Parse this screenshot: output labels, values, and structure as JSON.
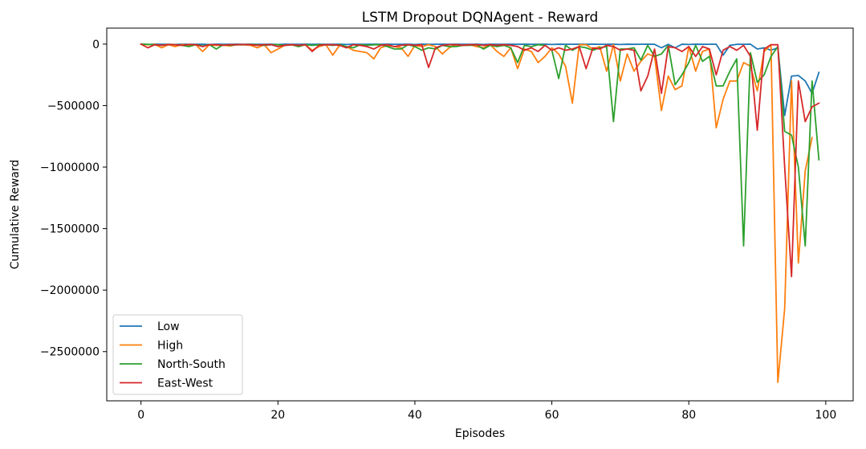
{
  "chart_data": {
    "type": "line",
    "title": "LSTM Dropout DQNAgent - Reward",
    "xlabel": "Episodes",
    "ylabel": "Cumulative Reward",
    "xlim": [
      -5,
      104
    ],
    "ylim": [
      -2900000,
      130000
    ],
    "xticks": [
      0,
      20,
      40,
      60,
      80,
      100
    ],
    "yticks": [
      0,
      -500000,
      -1000000,
      -1500000,
      -2000000,
      -2500000
    ],
    "ytick_labels": [
      "0",
      "−500000",
      "−1000000",
      "−1500000",
      "−2000000",
      "−2500000"
    ],
    "xtick_labels": [
      "0",
      "20",
      "40",
      "60",
      "80",
      "100"
    ],
    "legend_position": "lower-left",
    "grid": false,
    "series": [
      {
        "name": "Low",
        "color": "#1f77b4",
        "values": [
          0,
          -3000,
          -1000,
          -2000,
          -1500,
          -3000,
          -1000,
          -2000,
          -1500,
          -1000,
          -3000,
          -1000,
          -2000,
          -1500,
          -1000,
          -2000,
          -1000,
          -1500,
          -2000,
          -1000,
          -3000,
          -1000,
          -2000,
          -1500,
          -1000,
          -2000,
          -1000,
          -1500,
          -2000,
          -1000,
          -3000,
          -1000,
          -2000,
          -1500,
          -1000,
          -2000,
          -1000,
          -1500,
          -2000,
          -1000,
          -3000,
          -1000,
          -2000,
          -1500,
          -1000,
          -2000,
          -1000,
          -1500,
          -2000,
          -1000,
          -3000,
          -1000,
          -2000,
          -1500,
          -1000,
          -2000,
          -1000,
          -1500,
          -2000,
          -1000,
          -3000,
          -1000,
          -2000,
          -1500,
          -1000,
          -2000,
          -1000,
          -1500,
          -2000,
          -1000,
          -3000,
          -1000,
          -2000,
          -1500,
          -1000,
          -2000,
          -30000,
          -1500,
          -30000,
          -1000,
          -3000,
          -1000,
          -2000,
          -1500,
          -1000,
          -90000,
          -10000,
          -2000,
          -1500,
          -1000,
          -40000,
          -30000,
          -50000,
          -30000,
          -580000,
          -260000,
          -255000,
          -300000,
          -400000,
          -230000
        ]
      },
      {
        "name": "High",
        "color": "#ff7f0e",
        "values": [
          0,
          -5000,
          -2000,
          -30000,
          -5000,
          -20000,
          -3000,
          -10000,
          -5000,
          -60000,
          -5000,
          -10000,
          -8000,
          -15000,
          -5000,
          -5000,
          -10000,
          -30000,
          -5000,
          -70000,
          -40000,
          -10000,
          -5000,
          -20000,
          -5000,
          -50000,
          -20000,
          -5000,
          -90000,
          -10000,
          -20000,
          -50000,
          -60000,
          -70000,
          -120000,
          -30000,
          -10000,
          -20000,
          -30000,
          -100000,
          -10000,
          -20000,
          -5000,
          -20000,
          -80000,
          -30000,
          -5000,
          -10000,
          -5000,
          -20000,
          -30000,
          -5000,
          -60000,
          -100000,
          -30000,
          -200000,
          -40000,
          -60000,
          -150000,
          -100000,
          -30000,
          -80000,
          -180000,
          -480000,
          -5000,
          -5000,
          -40000,
          -20000,
          -220000,
          -5000,
          -300000,
          -80000,
          -220000,
          -140000,
          -80000,
          -100000,
          -540000,
          -260000,
          -370000,
          -340000,
          -20000,
          -220000,
          -60000,
          -40000,
          -680000,
          -450000,
          -300000,
          -300000,
          -150000,
          -180000,
          -380000,
          -60000,
          -5000,
          -2750000,
          -2150000,
          -300000,
          -1780000,
          -1030000,
          -760000
        ]
      },
      {
        "name": "North-South",
        "color": "#2ca02c",
        "values": [
          0,
          -2000,
          -5000,
          -10000,
          -3000,
          -5000,
          -10000,
          -20000,
          -5000,
          -15000,
          -5000,
          -40000,
          -5000,
          -10000,
          -5000,
          -5000,
          -3000,
          -5000,
          -10000,
          -5000,
          -5000,
          -10000,
          -5000,
          -20000,
          -5000,
          -10000,
          -5000,
          -5000,
          -10000,
          -5000,
          -20000,
          -30000,
          -5000,
          -10000,
          -5000,
          -5000,
          -20000,
          -40000,
          -40000,
          -5000,
          -20000,
          -50000,
          -30000,
          -40000,
          -10000,
          -20000,
          -20000,
          -10000,
          -10000,
          -5000,
          -40000,
          -10000,
          -20000,
          -10000,
          -30000,
          -150000,
          -10000,
          -20000,
          -5000,
          -10000,
          -50000,
          -280000,
          -10000,
          -50000,
          -20000,
          -30000,
          -50000,
          -30000,
          -20000,
          -630000,
          -40000,
          -40000,
          -30000,
          -130000,
          -10000,
          -100000,
          -80000,
          -10000,
          -330000,
          -250000,
          -150000,
          -10000,
          -140000,
          -100000,
          -340000,
          -340000,
          -220000,
          -120000,
          -1640000,
          -70000,
          -310000,
          -250000,
          -100000,
          -20000,
          -710000,
          -740000,
          -1000000,
          -1640000,
          -300000,
          -940000
        ]
      },
      {
        "name": "East-West",
        "color": "#d62728",
        "values": [
          0,
          -30000,
          -5000,
          -10000,
          -3000,
          -5000,
          -10000,
          -3000,
          -5000,
          -20000,
          -5000,
          -5000,
          -10000,
          -5000,
          -5000,
          -3000,
          -5000,
          -10000,
          -5000,
          -5000,
          -20000,
          -10000,
          -5000,
          -10000,
          -5000,
          -60000,
          -10000,
          -5000,
          -5000,
          -10000,
          -30000,
          -5000,
          -10000,
          -20000,
          -40000,
          -10000,
          -5000,
          -20000,
          -10000,
          -5000,
          -10000,
          -5000,
          -190000,
          -30000,
          -10000,
          -5000,
          -5000,
          -10000,
          -5000,
          -5000,
          -10000,
          -5000,
          -10000,
          -5000,
          -10000,
          -20000,
          -50000,
          -30000,
          -60000,
          -10000,
          -50000,
          -30000,
          -50000,
          -40000,
          -20000,
          -200000,
          -30000,
          -40000,
          -10000,
          -20000,
          -50000,
          -40000,
          -50000,
          -380000,
          -260000,
          -40000,
          -400000,
          -20000,
          -30000,
          -60000,
          -20000,
          -100000,
          -20000,
          -40000,
          -250000,
          -50000,
          -20000,
          -50000,
          -10000,
          -100000,
          -700000,
          -40000,
          -5000,
          -5000,
          -1000000,
          -1890000,
          -300000,
          -630000,
          -510000,
          -480000
        ]
      }
    ]
  }
}
